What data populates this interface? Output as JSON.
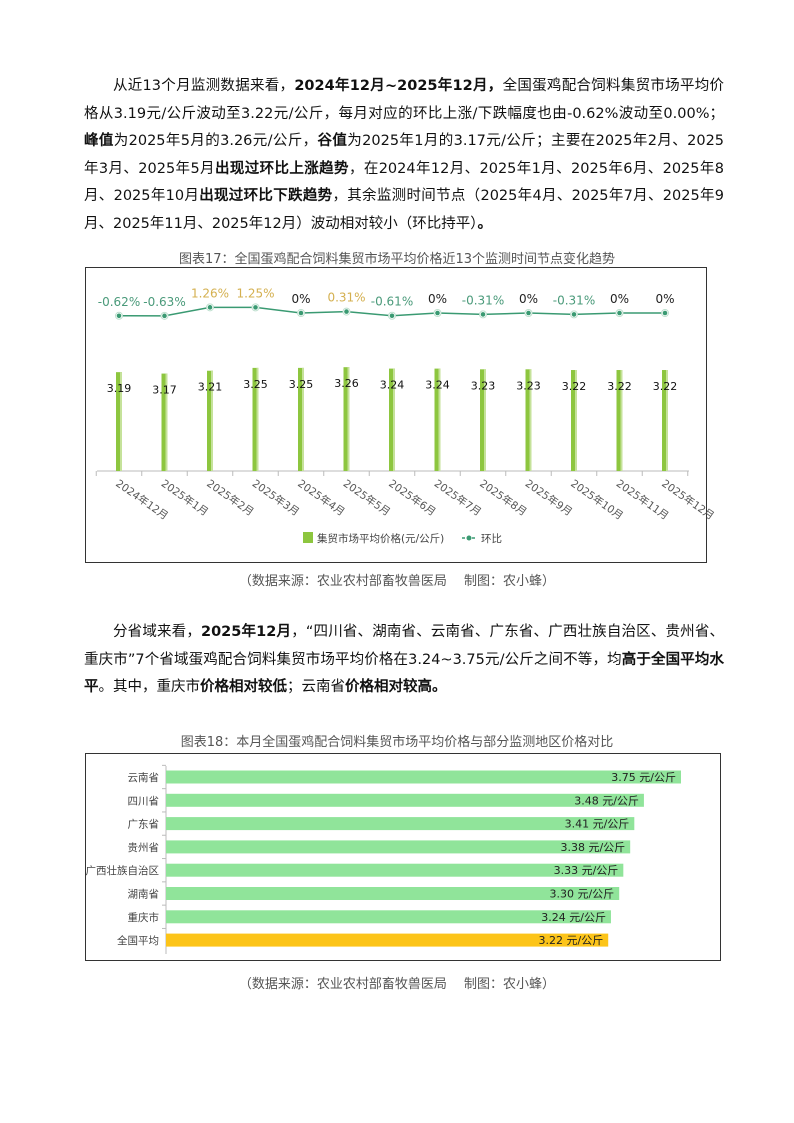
{
  "paragraph1": [
    {
      "text": "从近13个月监测数据来看，",
      "bold": false
    },
    {
      "text": "2024年12月~2025年12月，",
      "bold": true
    },
    {
      "text": "全国蛋鸡配合饲料集贸市场平均价格从3.19元/公斤波动至3.22元/公斤，每月对应的环比上涨/下跌幅度也由-0.62%波动至0.00%；",
      "bold": false
    },
    {
      "text": "峰值",
      "bold": true
    },
    {
      "text": "为2025年5月的3.26元/公斤，",
      "bold": false
    },
    {
      "text": "谷值",
      "bold": true
    },
    {
      "text": "为2025年1月的3.17元/公斤；主要在2025年2月、2025年3月、2025年5月",
      "bold": false
    },
    {
      "text": "出现过环比上涨趋势",
      "bold": true
    },
    {
      "text": "，在2024年12月、2025年1月、2025年6月、2025年8月、2025年10月",
      "bold": false
    },
    {
      "text": "出现过环比下跌趋势",
      "bold": true
    },
    {
      "text": "，其余监测时间节点（2025年4月、2025年7月、2025年9月、2025年11月、2025年12月）波动相对较小（环比持平）",
      "bold": false
    },
    {
      "text": "。",
      "bold": true
    }
  ],
  "chart1_title": "图表17：全国蛋鸡配合饲料集贸市场平均价格近13个监测时间节点变化趋势",
  "chart1_caption": "（数据来源：农业农村部畜牧兽医局　  制图：农小蜂）",
  "paragraph2": [
    {
      "text": "分省域来看，",
      "bold": false
    },
    {
      "text": "2025年12月",
      "bold": true
    },
    {
      "text": "，“四川省、湖南省、云南省、广东省、广西壮族自治区、贵州省、重庆市”7个省域蛋鸡配合饲料集贸市场平均价格在3.24~3.75元/公斤之间不等，均",
      "bold": false
    },
    {
      "text": "高于全国平均水平",
      "bold": true
    },
    {
      "text": "。其中，重庆市",
      "bold": false
    },
    {
      "text": "价格相对较低",
      "bold": true
    },
    {
      "text": "；云南省",
      "bold": false
    },
    {
      "text": "价格相对较高。",
      "bold": true
    }
  ],
  "chart2_title": "图表18：本月全国蛋鸡配合饲料集贸市场平均价格与部分监测地区价格对比",
  "chart2_caption": "（数据来源：农业农村部畜牧兽医局　  制图：农小蜂）",
  "chart_data": [
    {
      "type": "bar+line",
      "title": "图表17：全国蛋鸡配合饲料集贸市场平均价格近13个监测时间节点变化趋势",
      "categories": [
        "2024年12月",
        "2025年1月",
        "2025年2月",
        "2025年3月",
        "2025年4月",
        "2025年5月",
        "2025年6月",
        "2025年7月",
        "2025年8月",
        "2025年9月",
        "2025年10月",
        "2025年11月",
        "2025年12月"
      ],
      "series": [
        {
          "name": "集贸市场平均价格(元/公斤)",
          "type": "bar",
          "color": "#8dc63f",
          "values": [
            3.19,
            3.17,
            3.21,
            3.25,
            3.25,
            3.26,
            3.24,
            3.24,
            3.23,
            3.23,
            3.22,
            3.22,
            3.22
          ],
          "labels": [
            "3.19",
            "3.17",
            "3.21",
            "3.25",
            "3.25",
            "3.26",
            "3.24",
            "3.24",
            "3.23",
            "3.23",
            "3.22",
            "3.22",
            "3.22"
          ]
        },
        {
          "name": "环比",
          "type": "line",
          "color": "#3a9a72",
          "values": [
            -0.62,
            -0.63,
            1.26,
            1.25,
            0,
            0.31,
            -0.61,
            0,
            -0.31,
            0,
            -0.31,
            0,
            0
          ],
          "labels": [
            "-0.62%",
            "-0.63%",
            "1.26%",
            "1.25%",
            "0%",
            "0.31%",
            "-0.61%",
            "0%",
            "-0.31%",
            "0%",
            "-0.31%",
            "0%",
            "0%"
          ]
        }
      ],
      "ylim": [
        1.8,
        3.6
      ],
      "legend": "bottom",
      "colors": {
        "positive_label": "#d4b050",
        "negative_label": "#4a9a7a",
        "zero_label": "#222222"
      }
    },
    {
      "type": "bar",
      "orientation": "horizontal",
      "title": "图表18：本月全国蛋鸡配合饲料集贸市场平均价格与部分监测地区价格对比",
      "categories": [
        "云南省",
        "四川省",
        "广东省",
        "贵州省",
        "广西壮族自治区",
        "湖南省",
        "重庆市",
        "全国平均"
      ],
      "values": [
        3.75,
        3.48,
        3.41,
        3.38,
        3.33,
        3.3,
        3.24,
        3.22
      ],
      "labels": [
        "3.75 元/公斤",
        "3.48 元/公斤",
        "3.41 元/公斤",
        "3.38 元/公斤",
        "3.33 元/公斤",
        "3.30 元/公斤",
        "3.24 元/公斤",
        "3.22 元/公斤"
      ],
      "colors": [
        "#90e49a",
        "#90e49a",
        "#90e49a",
        "#90e49a",
        "#90e49a",
        "#90e49a",
        "#90e49a",
        "#fcc419"
      ],
      "xlim": [
        0,
        3.75
      ]
    }
  ]
}
